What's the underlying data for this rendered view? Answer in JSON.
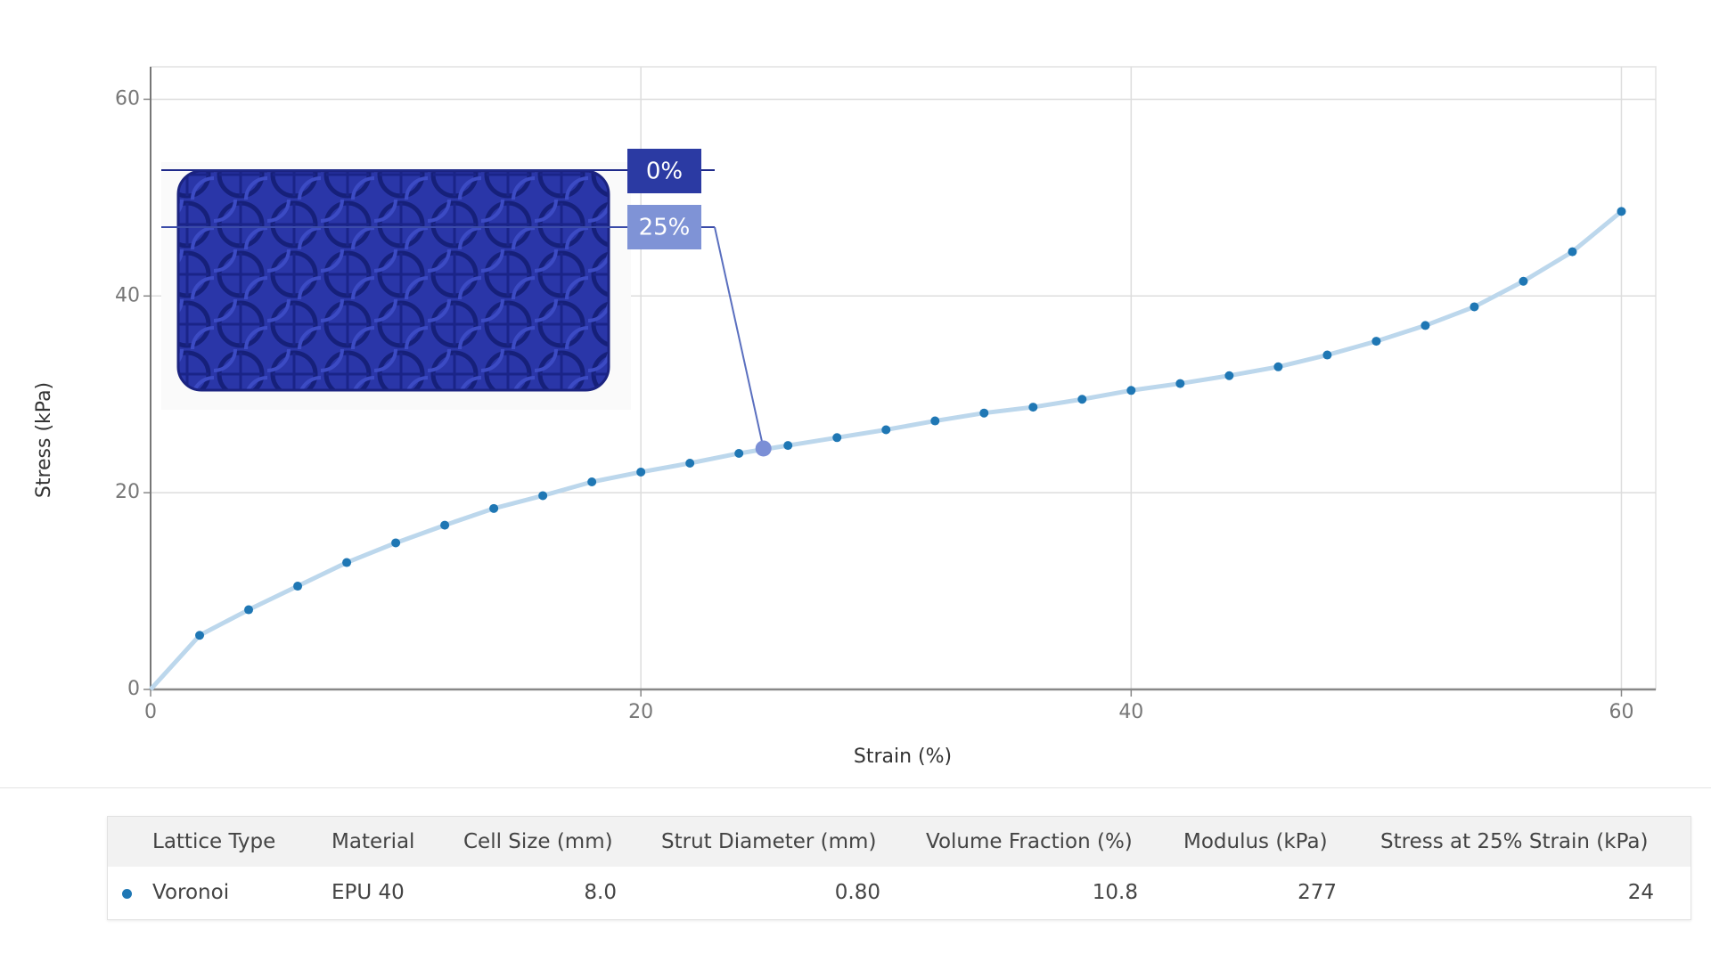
{
  "chart_data": {
    "type": "line",
    "x_label": "Strain (%)",
    "y_label": "Stress (kPa)",
    "x": [
      0,
      2,
      4,
      6,
      8,
      10,
      12,
      14,
      16,
      18,
      20,
      22,
      24,
      26,
      28,
      30,
      32,
      34,
      36,
      38,
      40,
      42,
      44,
      46,
      48,
      50,
      52,
      54,
      56,
      58,
      60
    ],
    "series": [
      {
        "color": "#1f77b4",
        "line_color": "#bcd7ec",
        "values": [
          0,
          5.5,
          8.1,
          10.5,
          12.9,
          14.9,
          16.7,
          18.4,
          19.7,
          21.1,
          22.1,
          23.0,
          24.0,
          24.8,
          25.6,
          26.4,
          27.3,
          28.1,
          28.7,
          29.5,
          30.4,
          31.1,
          31.9,
          32.8,
          34.0,
          35.4,
          37.0,
          38.9,
          41.5,
          44.5,
          48.6
        ]
      }
    ],
    "xlim": [
      0,
      61.4
    ],
    "ylim": [
      0,
      63.3
    ],
    "xticks": [
      0,
      20,
      40,
      60
    ],
    "yticks": [
      0,
      20,
      40,
      60
    ],
    "grid": true,
    "highlight": {
      "x": 25,
      "y": 24.5,
      "color": "#7b8fd6"
    },
    "annotations": [
      {
        "text": "0%",
        "color": "#2b3aa3"
      },
      {
        "text": "25%",
        "color": "#7f93d6"
      }
    ]
  },
  "table": {
    "columns": [
      "Lattice Type",
      "Material",
      "Cell Size (mm)",
      "Strut Diameter (mm)",
      "Volume Fraction (%)",
      "Modulus (kPa)",
      "Stress at 25% Strain (kPa)"
    ],
    "rows": [
      [
        "Voronoi",
        "EPU 40",
        "8.0",
        "0.80",
        "10.8",
        "277",
        "24"
      ]
    ]
  }
}
